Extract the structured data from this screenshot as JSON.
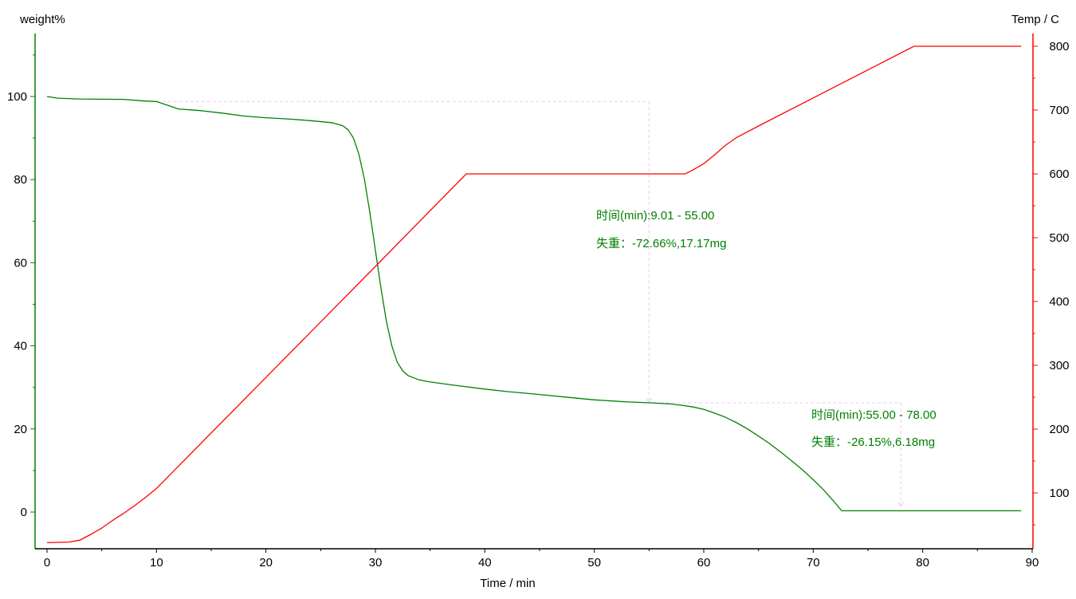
{
  "chart_data": {
    "type": "line",
    "xlabel": "Time / min",
    "ylabel_left": "weight%",
    "ylabel_right": "Temp / C",
    "xlim": [
      -1,
      90
    ],
    "ylim_left": [
      -8.8,
      115
    ],
    "ylim_right": [
      42,
      820
    ],
    "x_ticks": [
      0,
      10,
      20,
      30,
      40,
      50,
      60,
      70,
      80,
      90
    ],
    "y_left_ticks": [
      0,
      20,
      40,
      60,
      80,
      100
    ],
    "y_right_ticks": [
      100,
      200,
      300,
      400,
      500,
      600,
      700,
      800
    ],
    "grid": false,
    "colors": {
      "weight": "#008000",
      "temp": "#ff0000",
      "annotation_line": "#f0c8f0",
      "annotation_text": "#008000"
    },
    "series": [
      {
        "axis": "left",
        "color": "#008000",
        "x": [
          0,
          1,
          3,
          7,
          9,
          10,
          11,
          12,
          14,
          16,
          18,
          20,
          22,
          24,
          26,
          27,
          27.5,
          28,
          28.5,
          29,
          29.5,
          30,
          30.5,
          31,
          31.5,
          32,
          32.5,
          33,
          34,
          35,
          37,
          40,
          42,
          45,
          48,
          50,
          53,
          55,
          57,
          58,
          59,
          60,
          61,
          62,
          63,
          64,
          65,
          66,
          67,
          68,
          69,
          70,
          71,
          72,
          72.6,
          89
        ],
        "y": [
          100,
          99.6,
          99.4,
          99.3,
          98.9,
          98.8,
          97.9,
          97.0,
          96.6,
          96.0,
          95.3,
          94.9,
          94.6,
          94.2,
          93.7,
          93.0,
          92,
          90,
          86,
          80,
          72,
          63,
          54,
          46,
          40,
          36,
          34,
          32.8,
          31.8,
          31.3,
          30.6,
          29.6,
          29.0,
          28.3,
          27.5,
          27.0,
          26.5,
          26.3,
          26.0,
          25.7,
          25.3,
          24.7,
          23.8,
          22.8,
          21.5,
          20,
          18.3,
          16.5,
          14.5,
          12.4,
          10.2,
          7.8,
          5.2,
          2.2,
          0.3,
          0.3
        ]
      },
      {
        "axis": "right",
        "color": "#ff0000",
        "x": [
          0,
          2,
          3,
          4,
          5,
          6,
          7,
          8,
          9,
          10,
          20,
          30,
          38.3,
          58.3,
          59,
          60,
          61,
          62,
          63,
          65,
          70,
          75,
          79.2,
          89
        ],
        "y": [
          22,
          23,
          26,
          35,
          45,
          57,
          68,
          80,
          93,
          107,
          281,
          455,
          600,
          600,
          606,
          616,
          630,
          645,
          657,
          675,
          719,
          763,
          800,
          800
        ]
      }
    ],
    "annotations": [
      {
        "x_from": 9.01,
        "x_to": 55.0,
        "w_from": 98.8,
        "w_to": 26.3,
        "line1": "时间(min):9.01 - 55.00",
        "line2": "失重：-72.66%,17.17mg"
      },
      {
        "x_from": 55.0,
        "x_to": 78.0,
        "w_from": 26.3,
        "w_to": 1.3,
        "line1": "时间(min):55.00 - 78.00",
        "line2": "失重：-26.15%,6.18mg"
      }
    ]
  }
}
